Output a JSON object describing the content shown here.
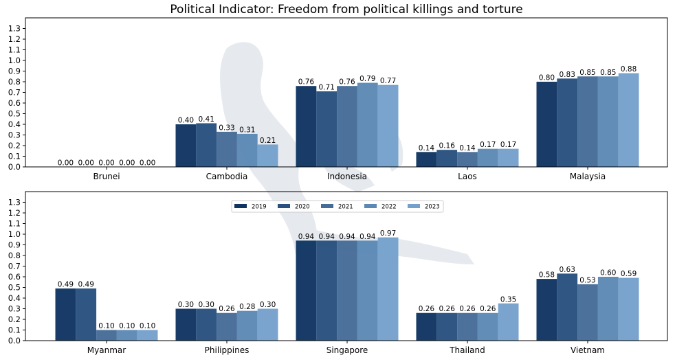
{
  "chart_data": {
    "type": "bar",
    "title": "Political Indicator: Freedom from political killings and torture",
    "ylim": [
      0,
      1.4
    ],
    "yticks": [
      "0.0",
      "0.1",
      "0.2",
      "0.3",
      "0.4",
      "0.5",
      "0.6",
      "0.7",
      "0.8",
      "0.9",
      "1.0",
      "1.1",
      "1.2",
      "1.3"
    ],
    "legend_position": "upper-center of bottom panel",
    "series_names": [
      "2019",
      "2020",
      "2021",
      "2022",
      "2023"
    ],
    "colors": [
      "#0f3461",
      "#284f7e",
      "#456b97",
      "#5b88b4",
      "#75a0cb"
    ],
    "panels": [
      {
        "categories": [
          "Brunei",
          "Cambodia",
          "Indonesia",
          "Laos",
          "Malaysia"
        ],
        "values": [
          [
            0.0,
            0.0,
            0.0,
            0.0,
            0.0
          ],
          [
            0.4,
            0.41,
            0.33,
            0.31,
            0.21
          ],
          [
            0.76,
            0.71,
            0.76,
            0.79,
            0.77
          ],
          [
            0.14,
            0.16,
            0.14,
            0.17,
            0.17
          ],
          [
            0.8,
            0.83,
            0.85,
            0.85,
            0.88
          ]
        ],
        "labels": [
          [
            "0.00",
            "0.00",
            "0.00",
            "0.00",
            "0.00"
          ],
          [
            "0.40",
            "0.41",
            "0.33",
            "0.31",
            "0.21"
          ],
          [
            "0.76",
            "0.71",
            "0.76",
            "0.79",
            "0.77"
          ],
          [
            "0.14",
            "0.16",
            "0.14",
            "0.17",
            "0.17"
          ],
          [
            "0.80",
            "0.83",
            "0.85",
            "0.85",
            "0.88"
          ]
        ]
      },
      {
        "categories": [
          "Myanmar",
          "Philippines",
          "Singapore",
          "Thailand",
          "Vietnam"
        ],
        "values": [
          [
            0.49,
            0.49,
            0.1,
            0.1,
            0.1
          ],
          [
            0.3,
            0.3,
            0.26,
            0.28,
            0.3
          ],
          [
            0.94,
            0.94,
            0.94,
            0.94,
            0.97
          ],
          [
            0.26,
            0.26,
            0.26,
            0.26,
            0.35
          ],
          [
            0.58,
            0.63,
            0.53,
            0.6,
            0.59
          ]
        ],
        "labels": [
          [
            "0.49",
            "0.49",
            "0.10",
            "0.10",
            "0.10"
          ],
          [
            "0.30",
            "0.30",
            "0.26",
            "0.28",
            "0.30"
          ],
          [
            "0.94",
            "0.94",
            "0.94",
            "0.94",
            "0.97"
          ],
          [
            "0.26",
            "0.26",
            "0.26",
            "0.26",
            "0.35"
          ],
          [
            "0.58",
            "0.63",
            "0.53",
            "0.60",
            "0.59"
          ]
        ]
      }
    ]
  }
}
